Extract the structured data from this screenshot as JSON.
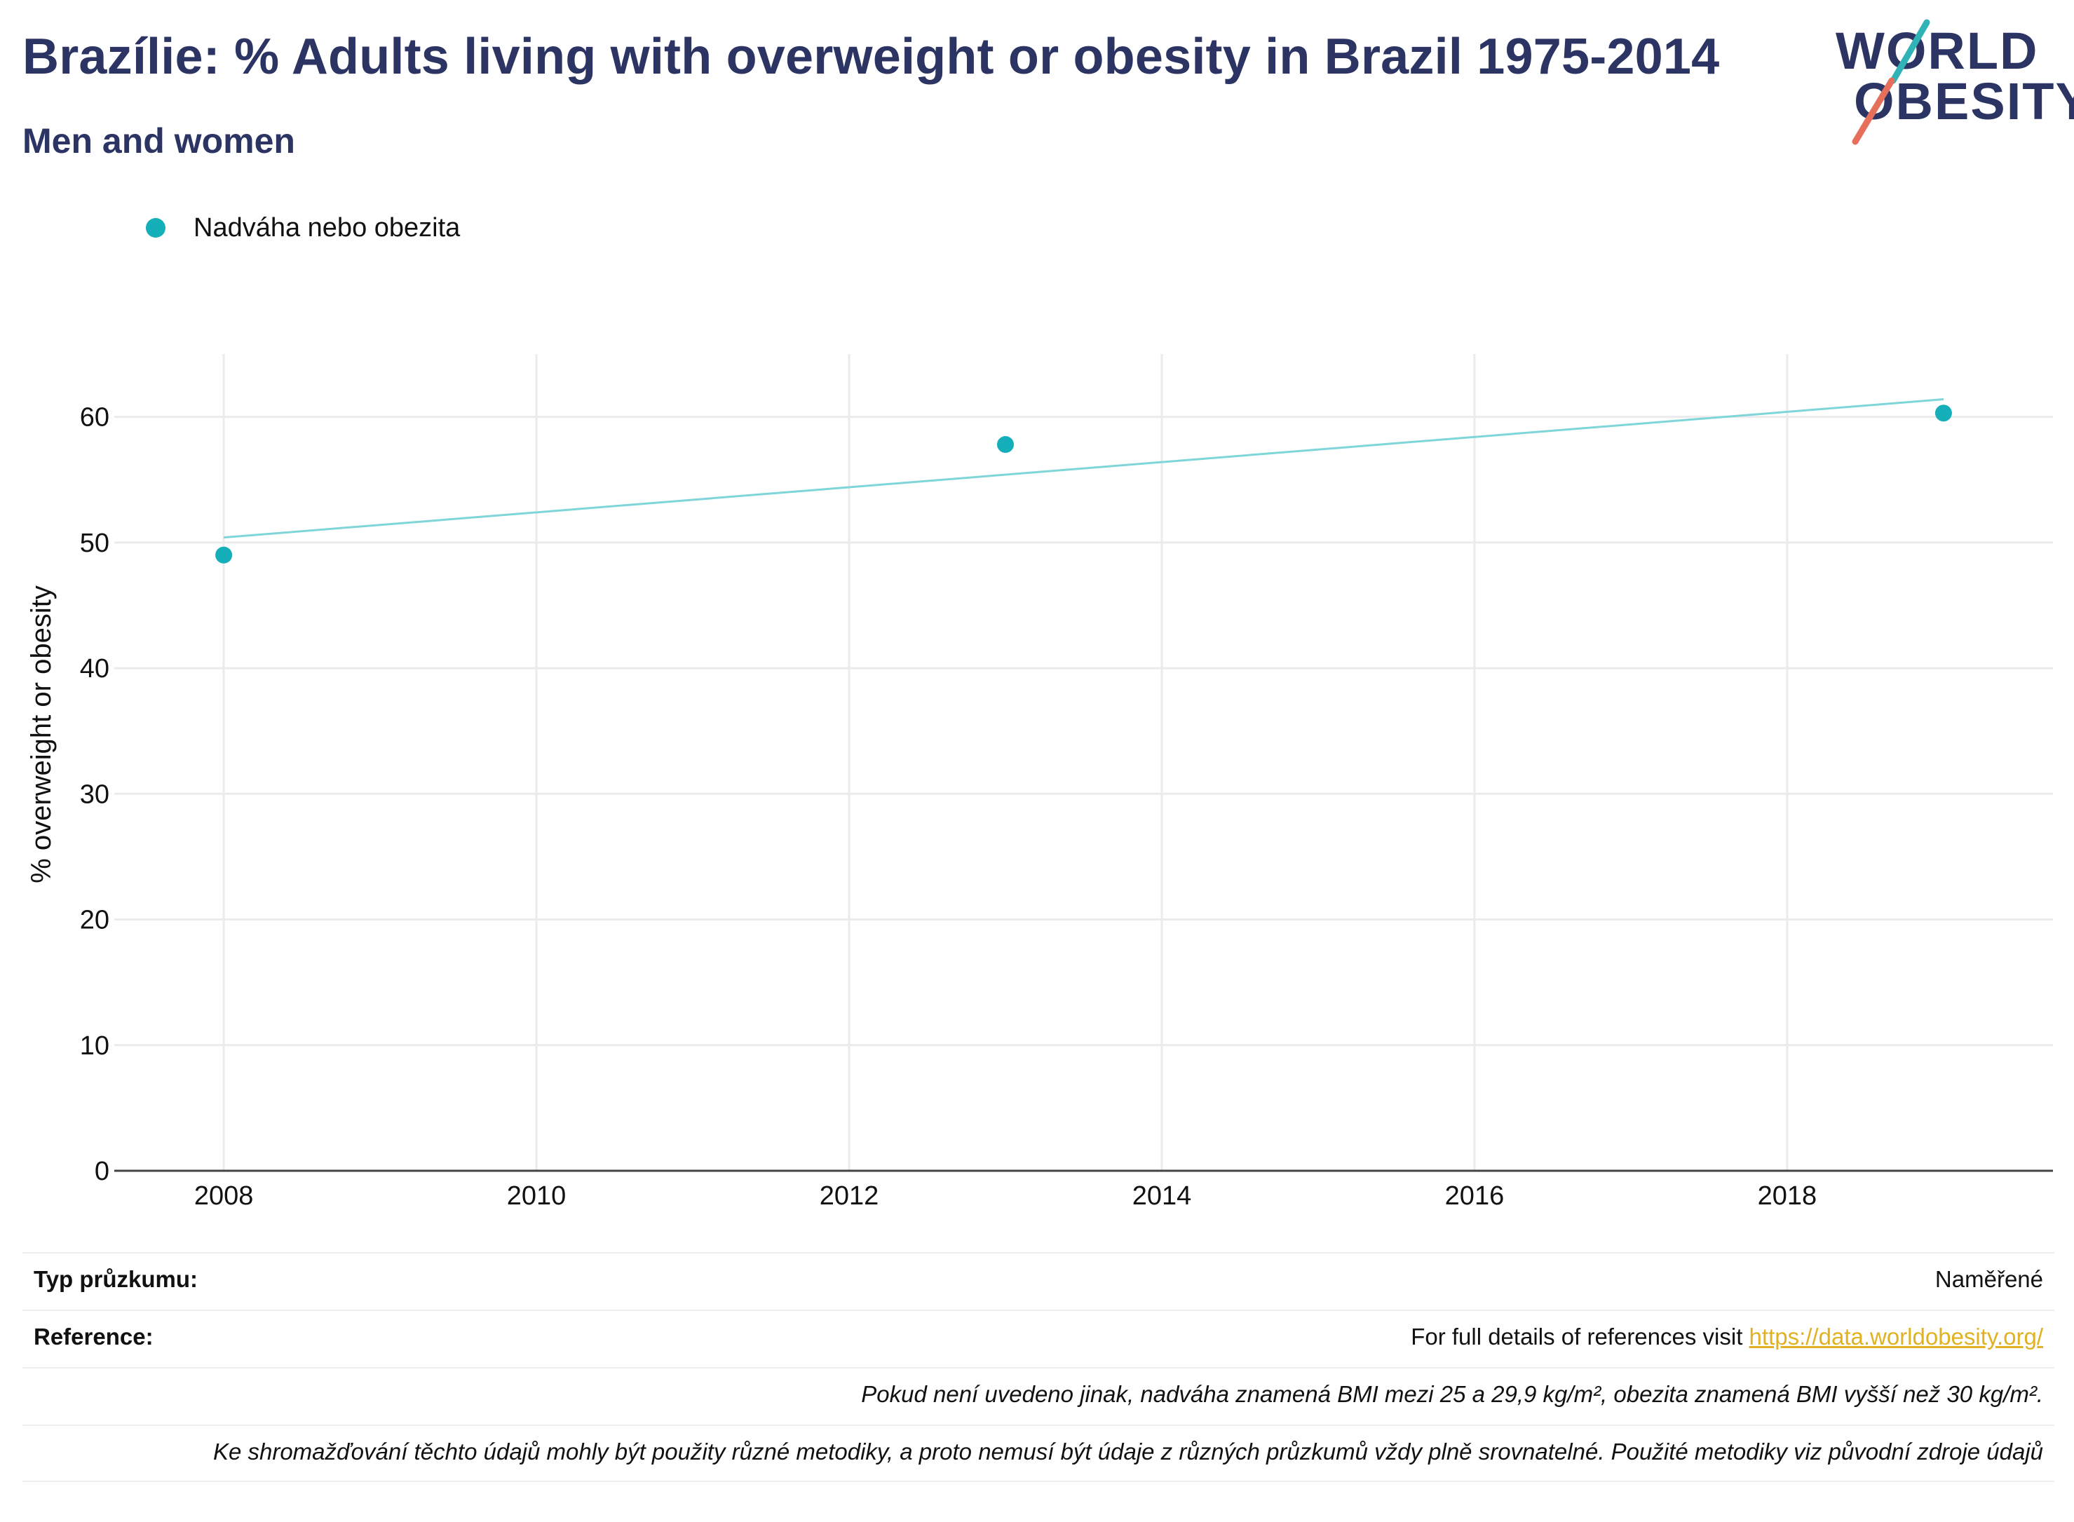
{
  "header": {
    "title": "Brazílie: % Adults living with overweight or obesity in Brazil 1975-2014",
    "subtitle": "Men and women"
  },
  "logo": {
    "line1": "WORLD",
    "line2": "OBESITY",
    "colors": {
      "text": "#2b3463",
      "teal": "#2fb3b7",
      "coral": "#e66f5c"
    }
  },
  "legend": {
    "label": "Nadváha nebo obezita",
    "color": "#15afb9"
  },
  "chart_data": {
    "type": "scatter",
    "ylabel": "% overweight or obesity",
    "xlabel": "",
    "xlim": [
      2007.3,
      2019.7
    ],
    "ylim": [
      0,
      65
    ],
    "x_ticks": [
      "2008",
      "2010",
      "2012",
      "2014",
      "2016",
      "2018"
    ],
    "y_ticks": [
      "0",
      "10",
      "20",
      "30",
      "40",
      "50",
      "60"
    ],
    "grid": true,
    "legend_position": "top-left",
    "series": [
      {
        "name": "Nadváha nebo obezita",
        "color": "#15afb9",
        "points": [
          {
            "x": 2008,
            "y": 49.0
          },
          {
            "x": 2013,
            "y": 57.8
          },
          {
            "x": 2019,
            "y": 60.3
          }
        ]
      }
    ],
    "trendline": {
      "color": "#7fd6d8",
      "points": [
        {
          "x": 2008,
          "y": 50.4
        },
        {
          "x": 2019,
          "y": 61.4
        }
      ]
    }
  },
  "info": {
    "rows": [
      {
        "key": "Typ průzkumu:",
        "value": "Naměřené"
      },
      {
        "key": "Reference:",
        "value": "For full details of references visit ",
        "link": "https://data.worldobesity.org/"
      },
      {
        "key": "",
        "value": "Pokud není uvedeno jinak, nadváha znamená BMI mezi 25 a 29,9 kg/m², obezita znamená BMI vyšší než 30 kg/m²."
      },
      {
        "key": "",
        "value": "Ke shromažďování těchto údajů mohly být použity různé metodiky, a proto nemusí být údaje z různých průzkumů vždy plně srovnatelné. Použité metodiky viz původní zdroje údajů"
      }
    ]
  }
}
